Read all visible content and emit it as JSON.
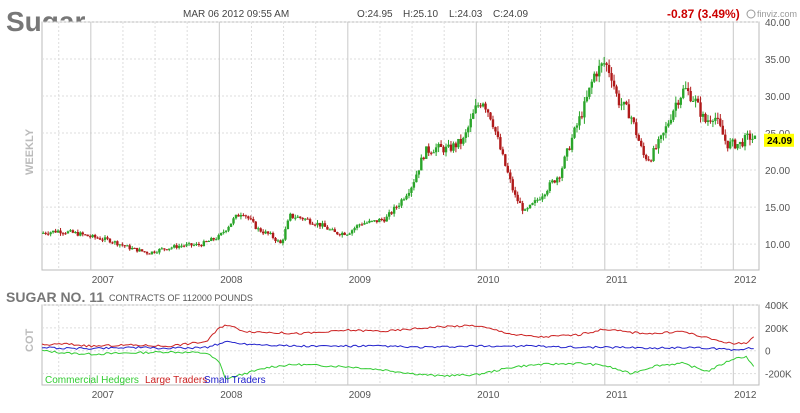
{
  "header": {
    "symbol": "Sugar",
    "datetime": "MAR 06 2012 09:55 AM",
    "open": "O:24.95",
    "high": "H:25.10",
    "low": "L:24.03",
    "close": "C:24.09",
    "change": "-0.87 (3.49%)",
    "brand": "finviz.com",
    "period_label": "WEEKLY",
    "last_price": "24.09"
  },
  "colors": {
    "up": "#2aa52a",
    "down": "#b01a1a",
    "grid": "#dddddd",
    "axis_text": "#555555",
    "price_tag_bg": "#ffff00",
    "change": "#cc0000",
    "hedgers": "#33cc33",
    "large": "#cc2222",
    "small": "#2222cc"
  },
  "cot": {
    "title": "SUGAR NO. 11",
    "subtitle": "CONTRACTS OF 112000 POUNDS",
    "side_label": "COT",
    "legend": [
      "Commercial Hedgers",
      "Large Traders",
      "Small Traders"
    ]
  },
  "chart_data": [
    {
      "type": "candlestick",
      "title": "Sugar",
      "ylim": [
        6.5,
        40
      ],
      "y_ticks": [
        "10.00",
        "15.00",
        "20.00",
        "25.00",
        "30.00",
        "35.00",
        "40.00"
      ],
      "y_tick_values": [
        10,
        15,
        20,
        25,
        30,
        35,
        40
      ],
      "x_ticks": [
        "2007",
        "2008",
        "2009",
        "2010",
        "2011",
        "2012"
      ],
      "x_tick_values": [
        2007.0,
        2008.0,
        2009.0,
        2010.0,
        2011.0,
        2012.0
      ],
      "xlim": [
        2006.62,
        2012.2
      ],
      "grid": true,
      "anchors": [
        [
          2006.62,
          11.5
        ],
        [
          2006.75,
          11.8
        ],
        [
          2006.9,
          11.4
        ],
        [
          2007.0,
          11.0
        ],
        [
          2007.15,
          10.5
        ],
        [
          2007.3,
          9.5
        ],
        [
          2007.45,
          8.8
        ],
        [
          2007.55,
          9.3
        ],
        [
          2007.7,
          9.8
        ],
        [
          2007.85,
          9.9
        ],
        [
          2008.0,
          11.0
        ],
        [
          2008.12,
          13.5
        ],
        [
          2008.18,
          14.4
        ],
        [
          2008.3,
          12.0
        ],
        [
          2008.4,
          11.2
        ],
        [
          2008.48,
          10.0
        ],
        [
          2008.55,
          13.8
        ],
        [
          2008.65,
          13.5
        ],
        [
          2008.8,
          12.5
        ],
        [
          2008.9,
          11.5
        ],
        [
          2009.0,
          11.5
        ],
        [
          2009.1,
          12.8
        ],
        [
          2009.2,
          13.0
        ],
        [
          2009.3,
          13.5
        ],
        [
          2009.4,
          15.5
        ],
        [
          2009.5,
          18.0
        ],
        [
          2009.6,
          22.5
        ],
        [
          2009.68,
          23.0
        ],
        [
          2009.78,
          22.8
        ],
        [
          2009.9,
          24.0
        ],
        [
          2010.0,
          28.5
        ],
        [
          2010.05,
          29.5
        ],
        [
          2010.12,
          27.0
        ],
        [
          2010.2,
          22.0
        ],
        [
          2010.3,
          16.5
        ],
        [
          2010.38,
          14.3
        ],
        [
          2010.45,
          15.5
        ],
        [
          2010.55,
          17.5
        ],
        [
          2010.65,
          19.5
        ],
        [
          2010.75,
          24.5
        ],
        [
          2010.85,
          29.0
        ],
        [
          2010.92,
          33.0
        ],
        [
          2011.0,
          34.5
        ],
        [
          2011.05,
          33.0
        ],
        [
          2011.1,
          29.5
        ],
        [
          2011.2,
          27.5
        ],
        [
          2011.3,
          22.0
        ],
        [
          2011.35,
          21.5
        ],
        [
          2011.45,
          24.5
        ],
        [
          2011.55,
          29.0
        ],
        [
          2011.62,
          31.0
        ],
        [
          2011.7,
          29.5
        ],
        [
          2011.78,
          26.5
        ],
        [
          2011.85,
          27.5
        ],
        [
          2011.95,
          23.5
        ],
        [
          2012.05,
          23.5
        ],
        [
          2012.12,
          24.5
        ],
        [
          2012.18,
          24.1
        ]
      ],
      "last": 24.09
    },
    {
      "type": "line",
      "title": "SUGAR NO. 11",
      "ylim": [
        -300000,
        400000
      ],
      "y_ticks": [
        "400K",
        "200K",
        "0",
        "-200K"
      ],
      "y_tick_values": [
        400000,
        200000,
        0,
        -200000
      ],
      "x_ticks": [
        "2007",
        "2008",
        "2009",
        "2010",
        "2011",
        "2012"
      ],
      "x_tick_values": [
        2007.0,
        2008.0,
        2009.0,
        2010.0,
        2011.0,
        2012.0
      ],
      "xlim": [
        2006.62,
        2012.2
      ],
      "series": [
        {
          "name": "Commercial Hedgers",
          "points": [
            [
              2006.62,
              0
            ],
            [
              2006.8,
              -20000
            ],
            [
              2007.0,
              -30000
            ],
            [
              2007.3,
              -20000
            ],
            [
              2007.6,
              -10000
            ],
            [
              2007.9,
              -20000
            ],
            [
              2008.0,
              -100000
            ],
            [
              2008.05,
              -250000
            ],
            [
              2008.2,
              -200000
            ],
            [
              2008.4,
              -140000
            ],
            [
              2008.6,
              -120000
            ],
            [
              2008.8,
              -130000
            ],
            [
              2009.0,
              -140000
            ],
            [
              2009.3,
              -170000
            ],
            [
              2009.5,
              -200000
            ],
            [
              2009.7,
              -220000
            ],
            [
              2010.0,
              -210000
            ],
            [
              2010.3,
              -140000
            ],
            [
              2010.5,
              -120000
            ],
            [
              2010.8,
              -110000
            ],
            [
              2011.0,
              -130000
            ],
            [
              2011.2,
              -200000
            ],
            [
              2011.4,
              -130000
            ],
            [
              2011.6,
              -110000
            ],
            [
              2011.8,
              -180000
            ],
            [
              2012.0,
              -70000
            ],
            [
              2012.1,
              -50000
            ],
            [
              2012.17,
              -160000
            ]
          ]
        },
        {
          "name": "Large Traders",
          "points": [
            [
              2006.62,
              50000
            ],
            [
              2006.8,
              60000
            ],
            [
              2007.0,
              40000
            ],
            [
              2007.3,
              50000
            ],
            [
              2007.6,
              40000
            ],
            [
              2007.9,
              80000
            ],
            [
              2008.0,
              200000
            ],
            [
              2008.05,
              230000
            ],
            [
              2008.2,
              170000
            ],
            [
              2008.4,
              160000
            ],
            [
              2008.6,
              150000
            ],
            [
              2008.8,
              160000
            ],
            [
              2009.0,
              180000
            ],
            [
              2009.3,
              170000
            ],
            [
              2009.5,
              190000
            ],
            [
              2009.7,
              210000
            ],
            [
              2010.0,
              220000
            ],
            [
              2010.3,
              140000
            ],
            [
              2010.5,
              120000
            ],
            [
              2010.8,
              140000
            ],
            [
              2011.0,
              190000
            ],
            [
              2011.2,
              160000
            ],
            [
              2011.4,
              150000
            ],
            [
              2011.6,
              170000
            ],
            [
              2011.8,
              110000
            ],
            [
              2012.0,
              60000
            ],
            [
              2012.1,
              70000
            ],
            [
              2012.17,
              130000
            ]
          ]
        },
        {
          "name": "Small Traders",
          "points": [
            [
              2006.62,
              30000
            ],
            [
              2006.8,
              20000
            ],
            [
              2007.0,
              20000
            ],
            [
              2007.3,
              30000
            ],
            [
              2007.6,
              20000
            ],
            [
              2007.9,
              30000
            ],
            [
              2008.0,
              60000
            ],
            [
              2008.05,
              80000
            ],
            [
              2008.2,
              60000
            ],
            [
              2008.4,
              50000
            ],
            [
              2008.6,
              40000
            ],
            [
              2008.8,
              40000
            ],
            [
              2009.0,
              40000
            ],
            [
              2009.3,
              40000
            ],
            [
              2009.5,
              30000
            ],
            [
              2009.7,
              30000
            ],
            [
              2010.0,
              40000
            ],
            [
              2010.3,
              40000
            ],
            [
              2010.5,
              40000
            ],
            [
              2010.8,
              30000
            ],
            [
              2011.0,
              30000
            ],
            [
              2011.2,
              30000
            ],
            [
              2011.4,
              20000
            ],
            [
              2011.6,
              30000
            ],
            [
              2011.8,
              20000
            ],
            [
              2012.0,
              10000
            ],
            [
              2012.1,
              20000
            ],
            [
              2012.17,
              20000
            ]
          ]
        }
      ]
    }
  ]
}
